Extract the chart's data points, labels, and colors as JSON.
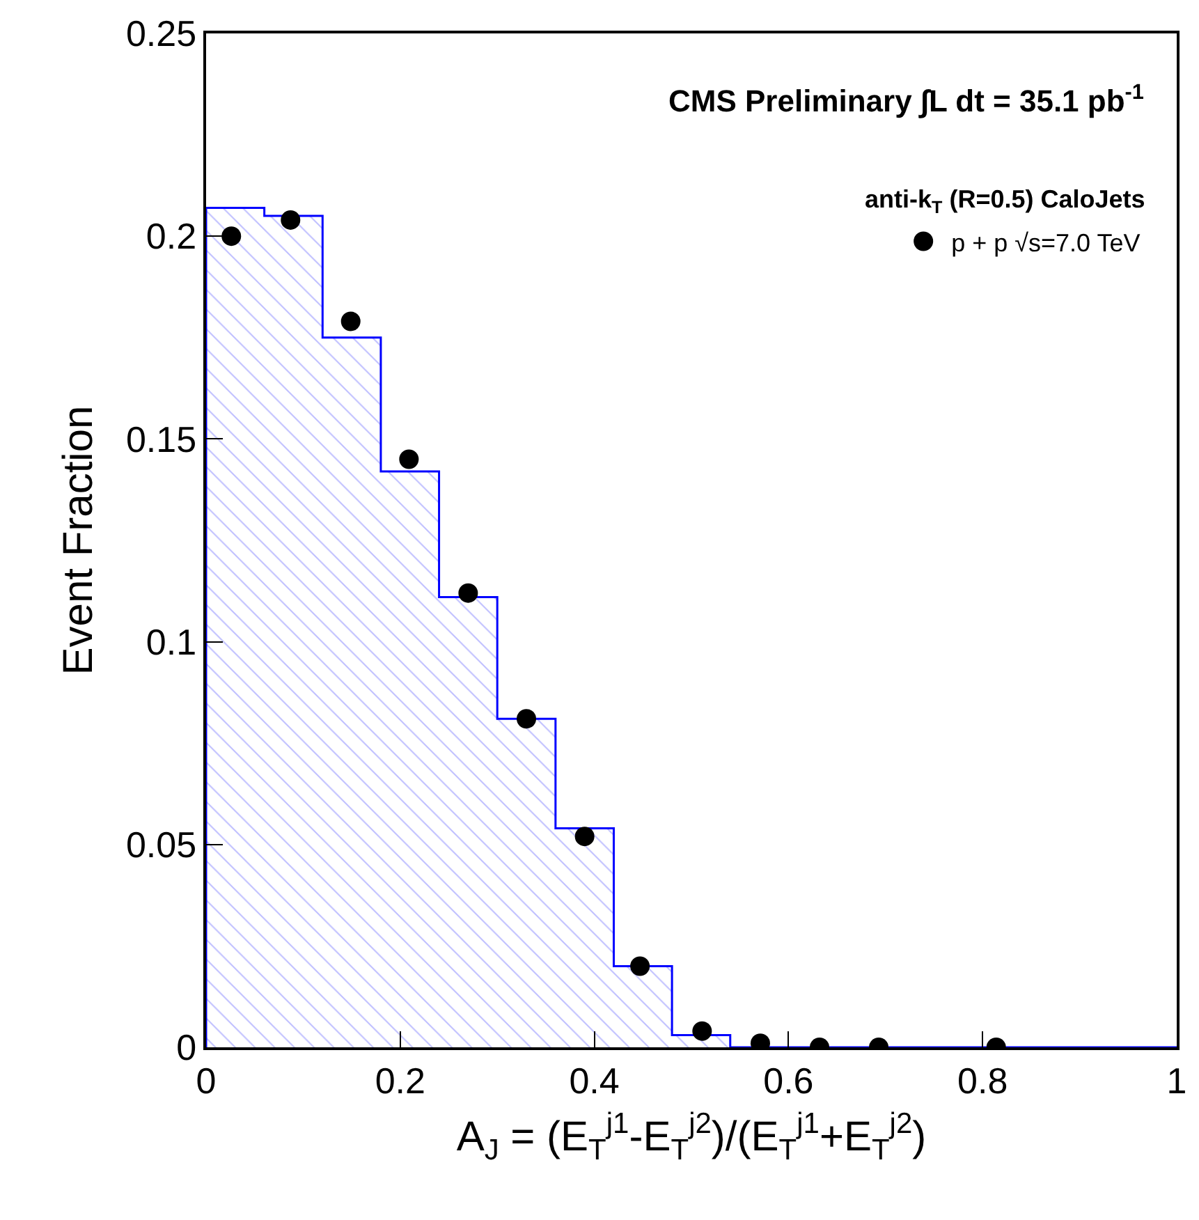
{
  "chart_data": {
    "type": "histogram",
    "xlabel": "A$_{J}$ = (E$_{T}$$^{j1}$-E$_{T}$$^{j2}$)/(E$_{T}$$^{j1}$+E$_{T}$$^{j2}$)",
    "ylabel": "Event Fraction",
    "annotations": [
      "CMS Preliminary ∫L dt = 35.1 pb$^{-1}$",
      "anti-k$_{T}$ (R=0.5) CaloJets"
    ],
    "series": [
      {
        "color": "#0000ff",
        "bins": [
          0,
          0.06,
          0.12,
          0.18,
          0.24,
          0.3,
          0.36,
          0.42,
          0.48,
          0.54,
          1
        ],
        "values": [
          0.207,
          0.205,
          0.175,
          0.142,
          0.111,
          0.081,
          0.054,
          0.02,
          0.003,
          0
        ]
      },
      {
        "type": "scatter",
        "name": "p + p √s=7.0 TeV",
        "color": "#000000",
        "x": [
          0.026,
          0.087,
          0.149,
          0.209,
          0.27,
          0.33,
          0.39,
          0.447,
          0.511,
          0.571,
          0.632,
          0.693,
          0.814
        ],
        "values": [
          0.2,
          0.204,
          0.179,
          0.145,
          0.112,
          0.081,
          0.052,
          0.02,
          0.004,
          0.001,
          0,
          0,
          0
        ]
      }
    ],
    "marker": "circle",
    "xlim": [
      0,
      1
    ],
    "ylim": [
      0,
      0.25
    ],
    "xticks": [
      0,
      0.2,
      0.4,
      0.6,
      0.8,
      1
    ],
    "yticks": [
      0,
      0.05,
      0.1,
      0.15,
      0.2,
      0.25
    ],
    "grid": false,
    "legend": "top right"
  }
}
